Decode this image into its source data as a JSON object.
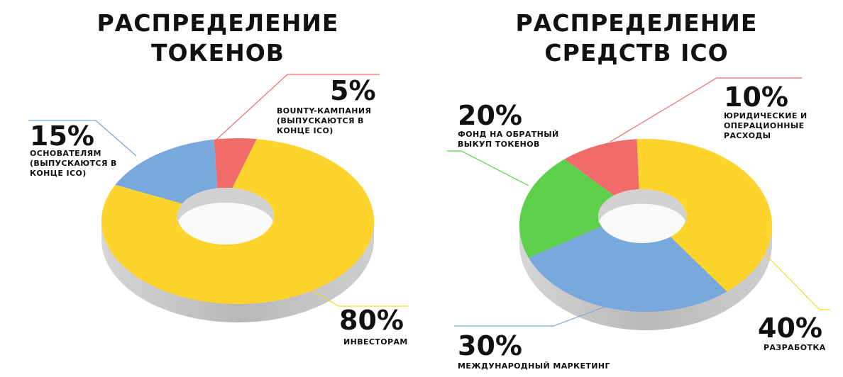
{
  "chart_data": [
    {
      "type": "pie",
      "title": "РАСПРЕДЕЛЕНИЕ ТОКЕНОВ",
      "categories": [
        "BOUNTY-КАМПАНИЯ (ВЫПУСКАЮТСЯ В КОНЦЕ ICO)",
        "ИНВЕСТОРАМ",
        "ОСНОВАТЕЛЯМ (ВЫПУСКАЮТСЯ В КОНЦЕ ICO)"
      ],
      "values": [
        5,
        80,
        15
      ],
      "value_labels": [
        "5%",
        "80%",
        "15%"
      ],
      "colors": [
        "#f26b6b",
        "#fed42c",
        "#79a8dd"
      ]
    },
    {
      "type": "pie",
      "title": "РАСПРЕДЕЛЕНИЕ СРЕДСТВ ICO",
      "categories": [
        "ЮРИДИЧЕСКИЕ И ОПЕРАЦИОННЫЕ РАСХОДЫ",
        "РАЗРАБОТКА",
        "МЕЖДУНАРОДНЫЙ МАРКЕТИНГ",
        "ФОНД НА ОБРАТНЫЙ ВЫКУП ТОКЕНОВ"
      ],
      "values": [
        10,
        40,
        30,
        20
      ],
      "value_labels": [
        "10%",
        "40%",
        "30%",
        "20%"
      ],
      "colors": [
        "#f26b6b",
        "#fed42c",
        "#79a8dd",
        "#5dcf4a"
      ]
    }
  ]
}
